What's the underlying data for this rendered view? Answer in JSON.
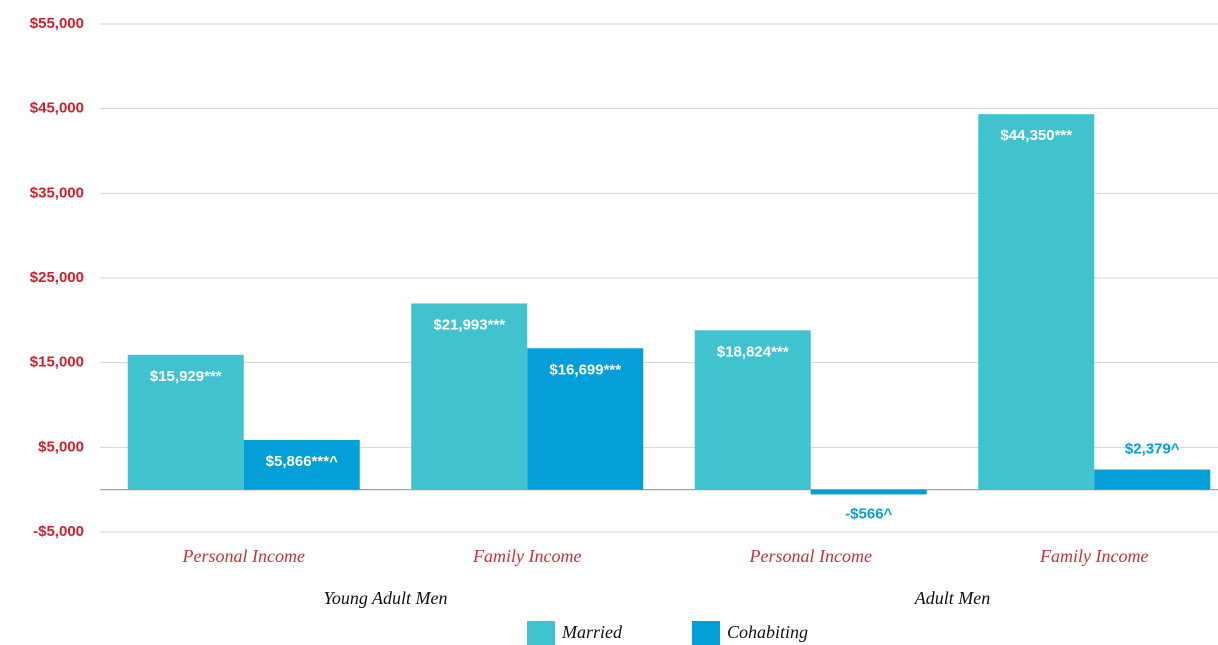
{
  "chart_data": {
    "type": "bar",
    "categories": [
      "Personal Income",
      "Family Income",
      "Personal Income",
      "Family Income"
    ],
    "groups": [
      "Young Adult Men",
      "Adult Men"
    ],
    "series": [
      {
        "name": "Married",
        "color": "#41c3cf",
        "values": [
          15929,
          21993,
          18824,
          44350
        ],
        "value_labels": [
          "$15,929***",
          "$21,993***",
          "$18,824***",
          "$44,350***"
        ]
      },
      {
        "name": "Cohabiting",
        "color": "#049fd9",
        "values": [
          5866,
          16699,
          -566,
          2379
        ],
        "value_labels": [
          "$5,866***^",
          "$16,699***",
          "-$566^",
          "$2,379^"
        ]
      }
    ],
    "ylim": [
      -5000,
      55000
    ],
    "yticks": [
      {
        "value": -5000,
        "label": "-$5,000"
      },
      {
        "value": 5000,
        "label": "$5,000"
      },
      {
        "value": 15000,
        "label": "$15,000"
      },
      {
        "value": 25000,
        "label": "$25,000"
      },
      {
        "value": 35000,
        "label": "$35,000"
      },
      {
        "value": 45000,
        "label": "$45,000"
      },
      {
        "value": 55000,
        "label": "$55,000"
      }
    ],
    "grid": true
  }
}
